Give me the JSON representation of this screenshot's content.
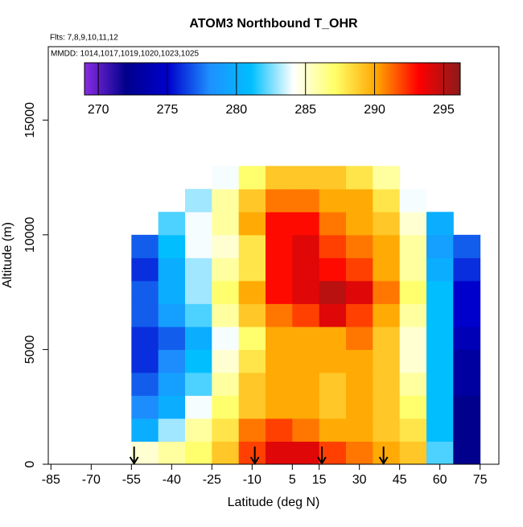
{
  "chart_data": {
    "type": "heatmap",
    "title": "ATOM3 Northbound T_OHR",
    "subtitle_lines": [
      "Flts: 7,8,9,10,11,12",
      "MMDD: 1014,1017,1019,1020,1023,1025"
    ],
    "x_label": "Latitude (deg N)",
    "y_label": "Altitude (m)",
    "xlim": [
      -86,
      82
    ],
    "xticks": [
      -85,
      -70,
      -55,
      -40,
      -25,
      -10,
      5,
      15,
      30,
      45,
      60,
      75
    ],
    "ylim": [
      0,
      18200
    ],
    "yticks": [
      0,
      5000,
      10000,
      15000
    ],
    "lat_bins": [
      -55,
      -45,
      -35,
      -25,
      -15,
      -5,
      5,
      15,
      25,
      35,
      45,
      55,
      65,
      75
    ],
    "alt_bins": [
      0,
      1000,
      2000,
      3000,
      4000,
      5000,
      6000,
      7000,
      8000,
      9000,
      10000,
      11000,
      12000,
      13000
    ],
    "values": [
      [
        285,
        286,
        287,
        289,
        292,
        294,
        294,
        292,
        291,
        290,
        289,
        282,
        272
      ],
      [
        280,
        283,
        286,
        288,
        291,
        292,
        291,
        290,
        290,
        289,
        288,
        281,
        272
      ],
      [
        278,
        280,
        284,
        287,
        289,
        290,
        290,
        289,
        290,
        289,
        287,
        281,
        272
      ],
      [
        277,
        279,
        282,
        286,
        289,
        290,
        290,
        289,
        290,
        289,
        286,
        281,
        273
      ],
      [
        276,
        278,
        281,
        285,
        288,
        290,
        290,
        290,
        290,
        289,
        285,
        281,
        273
      ],
      [
        276,
        277,
        280,
        284,
        287,
        290,
        290,
        290,
        291,
        289,
        285,
        281,
        274
      ],
      [
        277,
        279,
        282,
        286,
        289,
        291,
        292,
        294,
        292,
        290,
        286,
        281,
        275
      ],
      [
        277,
        280,
        283,
        287,
        290,
        293,
        294,
        295,
        294,
        291,
        287,
        281,
        275
      ],
      [
        276,
        280,
        283,
        286,
        288,
        293,
        294,
        293,
        292,
        290,
        286,
        280,
        276
      ],
      [
        277,
        281,
        284,
        285,
        288,
        293,
        294,
        292,
        291,
        290,
        286,
        279,
        277
      ],
      [
        null,
        282,
        284,
        286,
        290,
        293,
        293,
        291,
        290,
        289,
        285,
        280,
        null
      ],
      [
        null,
        null,
        283,
        286,
        289,
        291,
        291,
        290,
        290,
        288,
        284,
        null,
        null
      ],
      [
        null,
        null,
        null,
        284,
        287,
        289,
        289,
        289,
        288,
        286,
        null,
        null,
        null
      ]
    ],
    "colorbar_lim": [
      269,
      296.2
    ],
    "colorbar_ticks": [
      270,
      275,
      280,
      285,
      290,
      295
    ],
    "colorscale": [
      "#8a2be2",
      "#00008b",
      "#0000cd",
      "#1e90ff",
      "#00bfff",
      "#ffffff",
      "#ffff66",
      "#ffa500",
      "#ff0000",
      "#8b1a1a"
    ],
    "flight_markers": [
      -54,
      -9,
      16,
      39
    ]
  }
}
